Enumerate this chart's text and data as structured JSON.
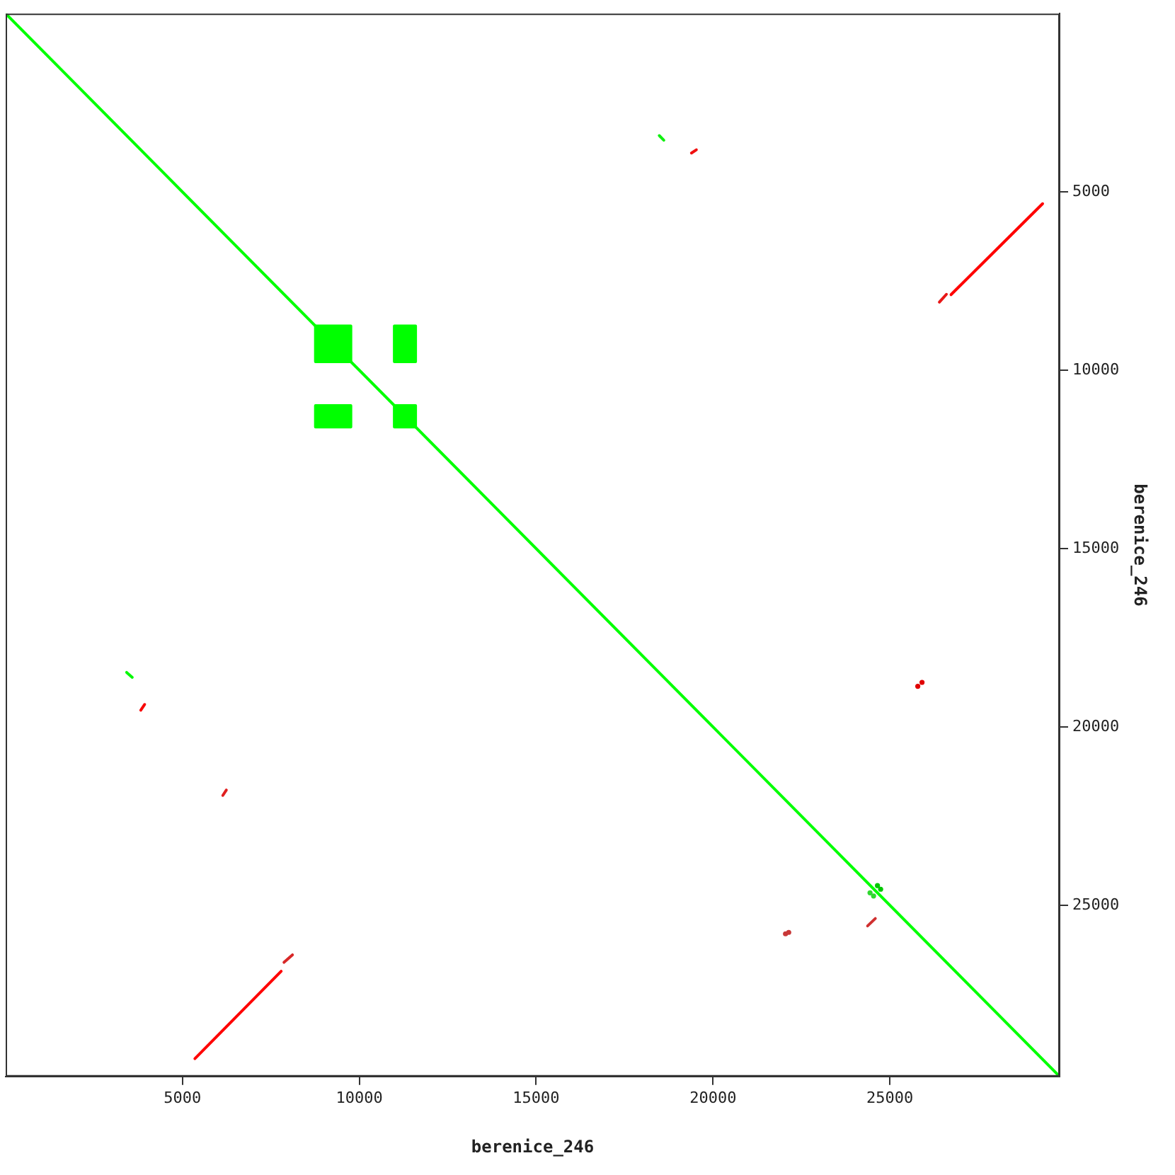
{
  "chart_data": {
    "type": "line",
    "xlabel": "berenice_246",
    "ylabel": "berenice_246",
    "xlim": [
      0,
      29800
    ],
    "ylim": [
      29800,
      0
    ],
    "xticks": [
      5000,
      10000,
      15000,
      20000,
      25000
    ],
    "yticks": [
      5000,
      10000,
      15000,
      20000,
      25000
    ],
    "grid": false,
    "legend": false,
    "line_style": "solid",
    "series": [
      {
        "color": "#00ff00",
        "x": [
          0,
          29800
        ],
        "values": [
          0,
          29800
        ]
      },
      {
        "color": "#10f010",
        "x": [
          18480,
          18610
        ],
        "values": [
          3420,
          3550
        ]
      },
      {
        "color": "#08f808",
        "x": [
          3420,
          3580
        ],
        "values": [
          18470,
          18610
        ]
      },
      {
        "type": "scatter",
        "color": "#00c800",
        "x": [
          24650,
          24740
        ],
        "values": [
          24450,
          24550
        ]
      },
      {
        "type": "scatter",
        "color": "#30d830",
        "x": [
          24440,
          24540
        ],
        "values": [
          24650,
          24740
        ]
      },
      {
        "color": "#f01010",
        "x": [
          19390,
          19530
        ],
        "values": [
          3910,
          3820
        ]
      },
      {
        "color": "#e81818",
        "x": [
          26400,
          26600
        ],
        "values": [
          8090,
          7870
        ]
      },
      {
        "color": "#ff0000",
        "x": [
          26730,
          29320
        ],
        "values": [
          7880,
          5330
        ]
      },
      {
        "color": "#f80808",
        "x": [
          3820,
          3930
        ],
        "values": [
          19530,
          19370
        ]
      },
      {
        "color": "#e02020",
        "x": [
          6140,
          6240
        ],
        "values": [
          21920,
          21770
        ]
      },
      {
        "color": "#ff0000",
        "x": [
          5350,
          7790
        ],
        "values": [
          29300,
          26850
        ]
      },
      {
        "color": "#d82828",
        "x": [
          7870,
          8110
        ],
        "values": [
          26600,
          26390
        ]
      },
      {
        "color": "#d03030",
        "x": [
          24370,
          24590
        ],
        "values": [
          25580,
          25370
        ]
      },
      {
        "type": "scatter",
        "color": "#c83838",
        "x": [
          22050,
          22140
        ],
        "values": [
          25800,
          25760
        ]
      },
      {
        "type": "scatter",
        "color": "#e00000",
        "x": [
          25790,
          25910
        ],
        "values": [
          18860,
          18750
        ]
      },
      {
        "type": "area",
        "color": "#00ff00",
        "x": [
          8760,
          9760,
          9760,
          8760,
          8760
        ],
        "values": [
          8760,
          8760,
          9760,
          9760,
          8760
        ]
      },
      {
        "type": "area",
        "color": "#00ff00",
        "x": [
          10990,
          11590,
          11590,
          10990,
          10990
        ],
        "values": [
          8760,
          8760,
          9760,
          9760,
          8760
        ]
      },
      {
        "type": "area",
        "color": "#00ff00",
        "x": [
          8760,
          9760,
          9760,
          8760,
          8760
        ],
        "values": [
          10990,
          10990,
          11590,
          11590,
          10990
        ]
      },
      {
        "type": "area",
        "color": "#00ff00",
        "x": [
          10990,
          11590,
          11590,
          10990,
          10990
        ],
        "values": [
          10990,
          10990,
          11590,
          11590,
          10990
        ]
      }
    ]
  }
}
